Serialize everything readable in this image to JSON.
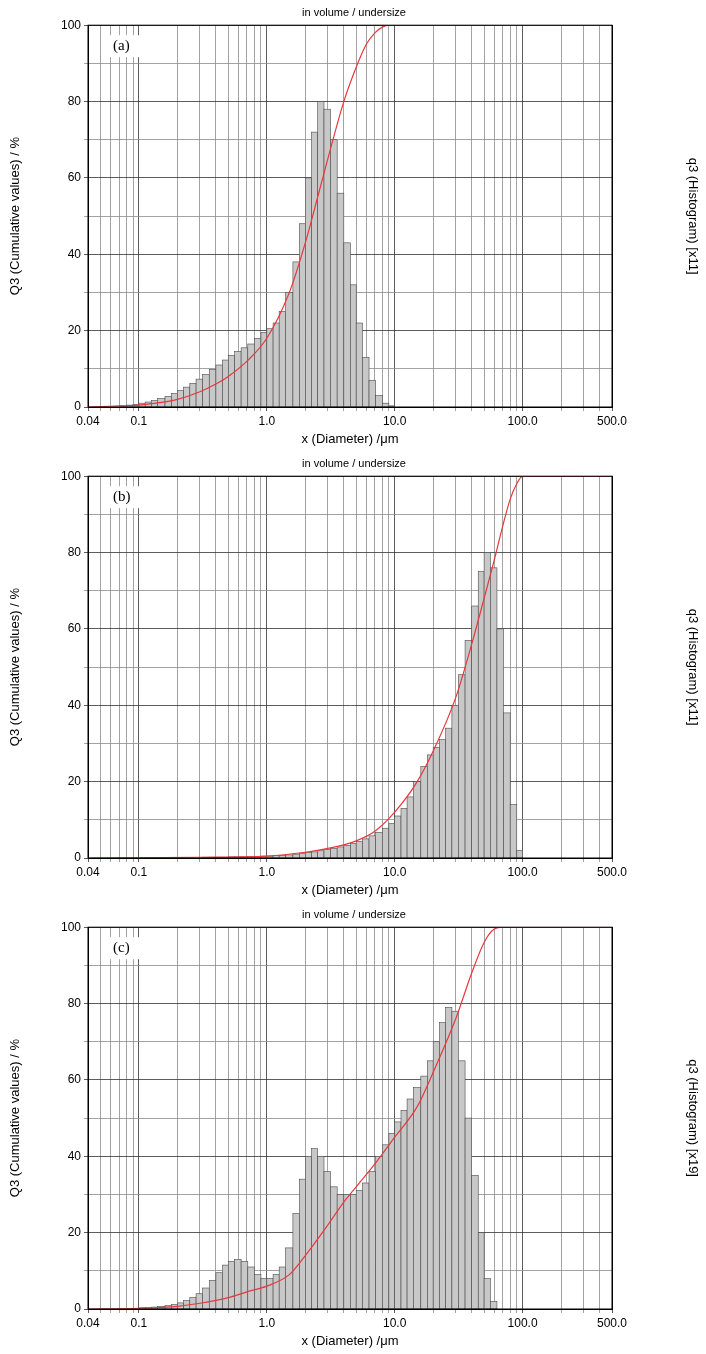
{
  "chart_data": [
    {
      "type": "histogram",
      "title": "in volume / undersize",
      "annotation": "(a)",
      "x_label": "x (Diameter) /μm",
      "y_label": "Q3 (Cumulative values) / %",
      "y2_label": "q3 (Histogram) [x11]",
      "log": "x",
      "grid": true,
      "xlim": [
        0.04,
        500
      ],
      "xticks": [
        0.04,
        0.1,
        {
          "value": 1,
          "label": "1.0"
        },
        {
          "value": 10,
          "label": "10.0"
        },
        {
          "value": 100,
          "label": "100.0"
        },
        {
          "value": 500,
          "label": "500.0"
        }
      ],
      "ylim": [
        0,
        100
      ],
      "yticks": [
        0,
        20,
        40,
        60,
        80,
        100
      ],
      "series": [
        {
          "type": "histogram",
          "color": "#c8c8c8",
          "bins": [
            0.071,
            0.08,
            0.09,
            0.1,
            0.112,
            0.125,
            0.14,
            0.16,
            0.18,
            0.2,
            0.224,
            0.25,
            0.28,
            0.315,
            0.355,
            0.4,
            0.45,
            0.5,
            0.56,
            0.63,
            0.71,
            0.8,
            0.9,
            1.0,
            1.12,
            1.25,
            1.4,
            1.6,
            1.8,
            2.0,
            2.24,
            2.5,
            2.8,
            3.15,
            3.55,
            4.0,
            4.5,
            5.0,
            5.6,
            6.3,
            7.1,
            8.0,
            9.0,
            10
          ],
          "values": [
            0.3,
            0.5,
            0.7,
            1,
            1.3,
            1.7,
            2.2,
            2.8,
            3.5,
            4.3,
            5.2,
            6.2,
            7.3,
            8.5,
            9.8,
            11,
            12.3,
            13.5,
            14.5,
            15.5,
            16.5,
            18,
            19.5,
            20.5,
            22,
            25,
            30,
            38,
            48,
            60,
            72,
            80,
            78,
            70,
            56,
            43,
            32,
            22,
            13,
            7,
            3,
            1,
            0.3
          ]
        },
        {
          "type": "line",
          "color": "#e8383d",
          "x": [
            0.04,
            0.06,
            0.1,
            0.15,
            0.2,
            0.3,
            0.4,
            0.5,
            0.7,
            1,
            1.5,
            2,
            2.5,
            3,
            4,
            5,
            6,
            7,
            8,
            9,
            10,
            500
          ],
          "values": [
            0,
            0.2,
            0.5,
            1.2,
            2,
            4,
            6,
            8,
            12,
            18,
            30,
            43,
            55,
            65,
            80,
            89,
            95,
            98,
            99.5,
            100,
            100,
            100
          ]
        }
      ]
    },
    {
      "type": "histogram",
      "title": "in volume / undersize",
      "annotation": "(b)",
      "x_label": "x (Diameter) /μm",
      "y_label": "Q3 (Cumulative values) / %",
      "y2_label": "q3 (Histogram) [x11]",
      "log": "x",
      "grid": true,
      "xlim": [
        0.04,
        500
      ],
      "xticks": [
        0.04,
        0.1,
        {
          "value": 1,
          "label": "1.0"
        },
        {
          "value": 10,
          "label": "10.0"
        },
        {
          "value": 100,
          "label": "100.0"
        },
        {
          "value": 500,
          "label": "500.0"
        }
      ],
      "ylim": [
        0,
        100
      ],
      "yticks": [
        0,
        20,
        40,
        60,
        80,
        100
      ],
      "series": [
        {
          "type": "histogram",
          "color": "#c8c8c8",
          "bins": [
            0.315,
            0.355,
            0.4,
            0.45,
            0.5,
            0.56,
            0.63,
            0.71,
            0.8,
            0.9,
            1.0,
            1.12,
            1.25,
            1.4,
            1.6,
            1.8,
            2.0,
            2.24,
            2.5,
            2.8,
            3.15,
            3.55,
            4.0,
            4.5,
            5.0,
            5.6,
            6.3,
            7.1,
            8.0,
            9.0,
            10,
            11.2,
            12.5,
            14,
            16,
            18,
            20,
            22.4,
            25,
            28,
            31.5,
            35.5,
            40,
            45,
            50,
            56,
            63,
            71,
            80,
            90,
            100
          ],
          "values": [
            0.2,
            0.2,
            0.2,
            0.2,
            0.3,
            0.3,
            0.3,
            0.4,
            0.4,
            0.5,
            0.5,
            0.6,
            0.7,
            0.8,
            1,
            1.2,
            1.4,
            1.6,
            1.9,
            2.2,
            2.5,
            2.9,
            3.3,
            3.8,
            4.3,
            5,
            5.8,
            6.7,
            7.8,
            9,
            11,
            13,
            16,
            20,
            24,
            27,
            29,
            31,
            34,
            40,
            48,
            57,
            66,
            75,
            80,
            76,
            60,
            38,
            14,
            2
          ]
        },
        {
          "type": "line",
          "color": "#e8383d",
          "x": [
            0.04,
            0.3,
            1,
            2,
            3,
            5,
            7,
            10,
            15,
            20,
            30,
            40,
            50,
            60,
            70,
            80,
            90,
            100,
            500
          ],
          "values": [
            0,
            0.2,
            0.5,
            1.5,
            2.5,
            4.5,
            7,
            12,
            20,
            28,
            42,
            56,
            68,
            78,
            87,
            94,
            98,
            100,
            100
          ]
        }
      ]
    },
    {
      "type": "histogram",
      "title": "in volume / undersize",
      "annotation": "(c)",
      "x_label": "x (Diameter) /μm",
      "y_label": "Q3 (Cumulative values) / %",
      "y2_label": "q3 (Histogram) [x19]",
      "log": "x",
      "grid": true,
      "xlim": [
        0.04,
        500
      ],
      "xticks": [
        0.04,
        0.1,
        {
          "value": 1,
          "label": "1.0"
        },
        {
          "value": 10,
          "label": "10.0"
        },
        {
          "value": 100,
          "label": "100.0"
        },
        {
          "value": 500,
          "label": "500.0"
        }
      ],
      "ylim": [
        0,
        100
      ],
      "yticks": [
        0,
        20,
        40,
        60,
        80,
        100
      ],
      "series": [
        {
          "type": "histogram",
          "color": "#c8c8c8",
          "bins": [
            0.1,
            0.112,
            0.125,
            0.14,
            0.16,
            0.18,
            0.2,
            0.224,
            0.25,
            0.28,
            0.315,
            0.355,
            0.4,
            0.45,
            0.5,
            0.56,
            0.63,
            0.71,
            0.8,
            0.9,
            1.0,
            1.12,
            1.25,
            1.4,
            1.6,
            1.8,
            2.0,
            2.24,
            2.5,
            2.8,
            3.15,
            3.55,
            4.0,
            4.5,
            5.0,
            5.6,
            6.3,
            7.1,
            8.0,
            9.0,
            10,
            11.2,
            12.5,
            14,
            16,
            18,
            20,
            22.4,
            25,
            28,
            31.5,
            35.5,
            40,
            45,
            50,
            56,
            63
          ],
          "values": [
            0.3,
            0.4,
            0.5,
            0.7,
            0.9,
            1.2,
            1.6,
            2.2,
            3,
            4,
            5.5,
            7.5,
            9.5,
            11.5,
            12.5,
            13,
            12.5,
            11,
            9,
            8,
            8,
            9,
            11,
            16,
            25,
            34,
            40,
            42,
            40,
            36,
            32,
            30,
            30,
            30,
            31,
            33,
            36,
            40,
            43,
            46,
            49,
            52,
            55,
            58,
            61,
            65,
            70,
            75,
            79,
            78,
            65,
            50,
            35,
            20,
            8,
            2
          ]
        },
        {
          "type": "line",
          "color": "#e8383d",
          "x": [
            0.04,
            0.1,
            0.2,
            0.3,
            0.5,
            0.7,
            1,
            1.5,
            2,
            3,
            4,
            5,
            7,
            10,
            15,
            20,
            30,
            40,
            50,
            60,
            70,
            500
          ],
          "values": [
            0,
            0.2,
            0.7,
            1.5,
            3,
            4.5,
            6,
            9,
            14,
            22,
            28,
            32,
            38,
            45,
            53,
            62,
            76,
            88,
            96,
            99.5,
            100,
            100
          ]
        }
      ]
    }
  ]
}
